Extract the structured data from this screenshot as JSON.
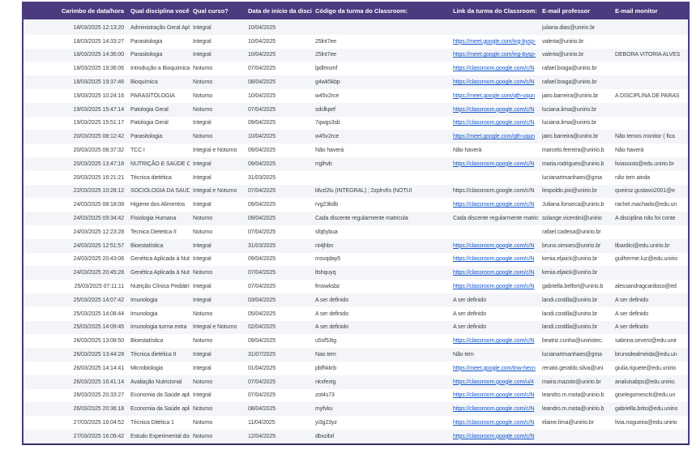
{
  "accent_color": "#4c3a7e",
  "link_color": "#1155cc",
  "columns": [
    {
      "label": "Carimbo de data/hora"
    },
    {
      "label": "Qual disciplina você ministra?"
    },
    {
      "label": "Qual curso?"
    },
    {
      "label": "Data de início da disciplina"
    },
    {
      "label": "Código da turma do Classroom:"
    },
    {
      "label": "Link da turma do Classroom:"
    },
    {
      "label": "E-mail professor"
    },
    {
      "label": "E-mail monitor"
    }
  ],
  "rows": [
    {
      "timestamp": "18/03/2025 12:13:20",
      "discipline": "Administração Geral Aplicada a Nutr",
      "course": "Integral",
      "start_date": "10/04/2025",
      "class_code": "",
      "class_link": "",
      "link_is_url": false,
      "prof_email": "juliana.dias@unirio.br",
      "monitor_email": ""
    },
    {
      "timestamp": "18/03/2025 14:33:27",
      "discipline": "Parasitologia",
      "course": "Integral",
      "start_date": "10/04/2025",
      "class_code": "25lnt7ee",
      "class_link": "https://meet.google.com/ing-bysp-",
      "link_is_url": true,
      "prof_email": "valeria@unirio.br",
      "monitor_email": ""
    },
    {
      "timestamp": "18/03/2025 14:36:00",
      "discipline": "Parasitologia",
      "course": "Integral",
      "start_date": "10/04/2025",
      "class_code": "25lnt7ee",
      "class_link": "https://meet.google.com/ing-bysp-",
      "link_is_url": true,
      "prof_email": "valeria@unirio.br",
      "monitor_email": "DEBORA VITORIA ALVES"
    },
    {
      "timestamp": "18/03/2025 19:36:06",
      "discipline": "Introdução a Bioquímica",
      "course": "Noturno",
      "start_date": "07/04/2025",
      "class_code": "lpdlmsmf",
      "class_link": "https://classroom.google.com/c/N",
      "link_is_url": true,
      "prof_email": "rafael.braga@unirio.br",
      "monitor_email": ""
    },
    {
      "timestamp": "18/03/2025 19:37:46",
      "discipline": "Bioquímica",
      "course": "Noturno",
      "start_date": "08/04/2025",
      "class_code": "g4wk5kbp",
      "class_link": "https://classroom.google.com/c/N",
      "link_is_url": true,
      "prof_email": "rafael.braga@unirio.br",
      "monitor_email": ""
    },
    {
      "timestamp": "19/03/2025 10:24:16",
      "discipline": "PARASITOLOGIA",
      "course": "Noturno",
      "start_date": "10/04/2025",
      "class_code": "w45v2rce",
      "class_link": "https://meet.google.com/qth-uqun",
      "link_is_url": true,
      "prof_email": "jairo.barreira@unirio.br",
      "monitor_email": "A DISCIPLINA DE PARAS"
    },
    {
      "timestamp": "19/03/2025 15:47:14",
      "discipline": "Patologia Geral",
      "course": "Noturno",
      "start_date": "07/04/2025",
      "class_code": "sdclkpef",
      "class_link": "https://classroom.google.com/c/N",
      "link_is_url": true,
      "prof_email": "luciana.lima@unirio.br",
      "monitor_email": ""
    },
    {
      "timestamp": "19/03/2025 15:51:17",
      "discipline": "Patologia Geral",
      "course": "Integral",
      "start_date": "09/04/2025",
      "class_code": "7qwgs3sb",
      "class_link": "https://classroom.google.com/c/N",
      "link_is_url": true,
      "prof_email": "luciana.lima@unirio.br",
      "monitor_email": ""
    },
    {
      "timestamp": "20/03/2025 08:12:42",
      "discipline": "Parasitologia",
      "course": "Noturno",
      "start_date": "10/04/2025",
      "class_code": "w45v2rce",
      "class_link": "https://meet.google.com/qth-uqun",
      "link_is_url": true,
      "prof_email": "jairo.barreira@unirio.br",
      "monitor_email": "Não temos monitor ( fica"
    },
    {
      "timestamp": "20/03/2025 08:37:32",
      "discipline": "TCC I",
      "course": "Integral e Noturno",
      "start_date": "09/04/2025",
      "class_code": "Não haverá",
      "class_link": "Não haverá",
      "link_is_url": false,
      "prof_email": "marcelo.ferreira@unirio.b",
      "monitor_email": "Não haverá"
    },
    {
      "timestamp": "20/03/2025 13:47:18",
      "discipline": "NUTRIÇÃO E SAÚDE COLETIVA",
      "course": "Integral",
      "start_date": "09/04/2025",
      "class_code": "rrglhvb",
      "class_link": "https://classroom.google.com/c/N",
      "link_is_url": true,
      "prof_email": "maria.rodrigues@unirio.b",
      "monitor_email": "liviasouto@edu.unirio.br"
    },
    {
      "timestamp": "20/03/2025 16:21:21",
      "discipline": "Técnica dietética",
      "course": "Integral",
      "start_date": "31/03/2025",
      "class_code": "",
      "class_link": "",
      "link_is_url": false,
      "prof_email": "lucianartmanhaes@gma",
      "monitor_email": "não tem ainda"
    },
    {
      "timestamp": "22/03/2025 10:28:12",
      "discipline": "SOCIOLOGIA DA SAUDE",
      "course": "Integral e Noturno",
      "start_date": "07/04/2025",
      "class_code": "ldvzl2lu (INTEGRAL) ; 2zplrv6s (NOTUI",
      "class_link": "https://classroom.google.com/c/N",
      "link_is_url": false,
      "prof_email": "leopoldo.pio@unirio.br",
      "monitor_email": "queiroz.gustavo2001@e"
    },
    {
      "timestamp": "24/03/2025 08:18:08",
      "discipline": "Higiene dos Alimentos",
      "course": "Integral",
      "start_date": "09/04/2025",
      "class_code": "rvg23kdb",
      "class_link": "https://classroom.google.com/c/N",
      "link_is_url": true,
      "prof_email": "Juliana.fonseca@unirio.b",
      "monitor_email": "rachel.machado@edu.un"
    },
    {
      "timestamp": "24/03/2025 09:34:42",
      "discipline": "Fisiologia Humana",
      "course": "Noturno",
      "start_date": "09/04/2025",
      "class_code": "Cada discente regularmente matricula",
      "class_link": "Cada discente regularmente matric",
      "link_is_url": false,
      "prof_email": "solange.vicentini@unirio",
      "monitor_email": "A disciplina não foi conte"
    },
    {
      "timestamp": "24/03/2025 12:23:28",
      "discipline": "Tecnica Dietetica II",
      "course": "Noturno",
      "start_date": "07/04/2025",
      "class_code": "sfq6ybua",
      "class_link": "",
      "link_is_url": false,
      "prof_email": "rafael.cadena@unirio.br",
      "monitor_email": ""
    },
    {
      "timestamp": "24/03/2025 12:51:57",
      "discipline": "Bioestatística",
      "course": "Integral",
      "start_date": "31/03/2025",
      "class_code": "nt4jhbn",
      "class_link": "https://classroom.google.com/c/N",
      "link_is_url": true,
      "prof_email": "bruno.simoes@unirio.br",
      "monitor_email": "libardici@edu.unirio.br"
    },
    {
      "timestamp": "24/03/2025 20:43:06",
      "discipline": "Genética Aplicada à Nutrição (integr",
      "course": "Integral",
      "start_date": "09/04/2025",
      "class_code": "msvqday5",
      "class_link": "https://classroom.google.com/c/N",
      "link_is_url": true,
      "prof_email": "kenia.eljaick@unirio.br",
      "monitor_email": "guilherme.luz@edu.unirio"
    },
    {
      "timestamp": "24/03/2025 20:45:28",
      "discipline": "Genética Aplicada à Nutrição (notur",
      "course": "Noturno",
      "start_date": "07/04/2025",
      "class_code": "ltshquyq",
      "class_link": "https://classroom.google.com/c/N",
      "link_is_url": true,
      "prof_email": "kenia.eljaick@unirio.br",
      "monitor_email": ""
    },
    {
      "timestamp": "25/03/2025 07:11:11",
      "discipline": "Nutrição Clínica Pediátrica",
      "course": "Integral",
      "start_date": "07/04/2025",
      "class_code": "fmowksbz",
      "class_link": "https://classroom.google.com/c/N",
      "link_is_url": true,
      "prof_email": "gabriella.belfort@unirio.b",
      "monitor_email": "alessandragcardoso@ed"
    },
    {
      "timestamp": "25/03/2025 14:07:42",
      "discipline": "Imunologia",
      "course": "Integral",
      "start_date": "03/04/2025",
      "class_code": "A ser definido",
      "class_link": "A ser definido",
      "link_is_url": false,
      "prof_email": "landi.costilla@unirio.br",
      "monitor_email": "A ser definido"
    },
    {
      "timestamp": "25/03/2025 14:08:44",
      "discipline": "Imunologia",
      "course": "Noturno",
      "start_date": "05/04/2025",
      "class_code": "A ser definido",
      "class_link": "A ser definido",
      "link_is_url": false,
      "prof_email": "landi.costilla@unirio.br",
      "monitor_email": "A ser definido"
    },
    {
      "timestamp": "25/03/2025 14:09:45",
      "discipline": "Imunologia turma extra",
      "course": "Integral e Noturno",
      "start_date": "02/04/2025",
      "class_code": "A ser definido",
      "class_link": "A ser definido",
      "link_is_url": false,
      "prof_email": "landi.costilla@unirio.br",
      "monitor_email": "A ser definido"
    },
    {
      "timestamp": "26/03/2025 13:08:50",
      "discipline": "Bioestatística",
      "course": "Noturno",
      "start_date": "09/04/2025",
      "class_code": "u5sf53tg",
      "class_link": "https://classroom.google.com/c/N",
      "link_is_url": true,
      "prof_email": "beatriz.cunha@uniriotec.",
      "monitor_email": "sabrina.severo@edu.unir"
    },
    {
      "timestamp": "26/03/2025 13:44:28",
      "discipline": "Técnica dietética II",
      "course": "Integral",
      "start_date": "31/07/2025",
      "class_code": "Nao tem",
      "class_link": "Não tem",
      "link_is_url": false,
      "prof_email": "lucianartmanhaes@gma",
      "monitor_email": "brunodealmeida@edu.un"
    },
    {
      "timestamp": "26/03/2025 14:14:41",
      "discipline": "Microbiologia",
      "course": "Integral",
      "start_date": "01/04/2025",
      "class_code": "pbfhkkrb",
      "class_link": "https://meet.google.com/tnw-hecn",
      "link_is_url": true,
      "prof_email": "renato.geraldo.silva@uni",
      "monitor_email": "giulia.riguete@edu.unirio"
    },
    {
      "timestamp": "26/03/2025 16:41:14",
      "discipline": "Avaliação Nutricional",
      "course": "Noturno",
      "start_date": "07/04/2025",
      "class_code": "nkxfextg",
      "class_link": "https://classroom.google.com/u/4",
      "link_is_url": true,
      "prof_email": "maira.mazoto@unirio.br",
      "monitor_email": "analuisabps@edu.unirio."
    },
    {
      "timestamp": "26/03/2025 20:33:27",
      "discipline": "Economia da Saúde aplicada à Nutri",
      "course": "Integral",
      "start_date": "07/04/2025",
      "class_code": "zot4s73",
      "class_link": "https://classroom.google.com/c/N",
      "link_is_url": true,
      "prof_email": "leandro.m.mota@unirio.b",
      "monitor_email": "giselegomescls@edu.un"
    },
    {
      "timestamp": "26/03/2025 20:36:18",
      "discipline": "Economia da Saúde aplicada à Nutri",
      "course": "Noturno",
      "start_date": "08/04/2025",
      "class_code": "myfvku",
      "class_link": "https://classroom.google.com/c/N",
      "link_is_url": true,
      "prof_email": "leandro.m.mota@unirio.b",
      "monitor_email": "gabriella.brito@edu.unirio"
    },
    {
      "timestamp": "27/03/2025 16:04:52",
      "discipline": "Técnica Ditética 1",
      "course": "Noturno",
      "start_date": "11/04/2025",
      "class_code": "yi3g23yz",
      "class_link": "https://classroom.google.com/c/N",
      "link_is_url": true,
      "prof_email": "elaine.lima@unirio.br",
      "monitor_email": "livia.nogueira@edu.unirio"
    },
    {
      "timestamp": "27/03/2025 16:09:42",
      "discipline": "Estudo Experimental dos Alimentos",
      "course": "Noturno",
      "start_date": "12/04/2025",
      "class_code": "dbxzibrl",
      "class_link": "https://classroom.google.com/c/N",
      "link_is_url": true,
      "prof_email": "",
      "monitor_email": ""
    }
  ]
}
